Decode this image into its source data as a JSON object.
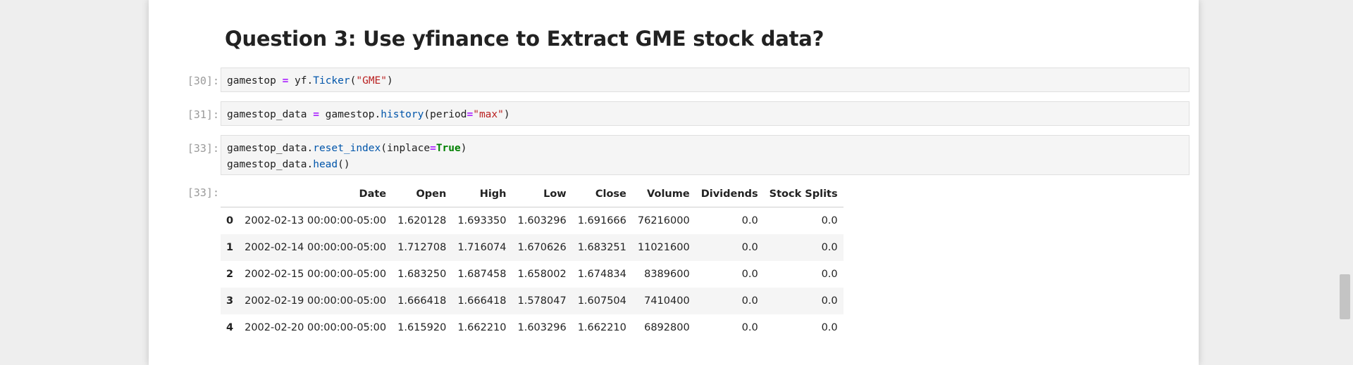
{
  "heading": "Question 3: Use yfinance to Extract GME stock data?",
  "cells": [
    {
      "prompt": "[30]:",
      "lines": [
        [
          {
            "t": "gamestop ",
            "c": ""
          },
          {
            "t": "=",
            "c": "op"
          },
          {
            "t": " yf.",
            "c": ""
          },
          {
            "t": "Ticker",
            "c": "fn"
          },
          {
            "t": "(",
            "c": ""
          },
          {
            "t": "\"GME\"",
            "c": "str"
          },
          {
            "t": ")",
            "c": ""
          }
        ]
      ]
    },
    {
      "prompt": "[31]:",
      "lines": [
        [
          {
            "t": "gamestop_data ",
            "c": ""
          },
          {
            "t": "=",
            "c": "op"
          },
          {
            "t": " gamestop.",
            "c": ""
          },
          {
            "t": "history",
            "c": "fn"
          },
          {
            "t": "(period",
            "c": ""
          },
          {
            "t": "=",
            "c": "op"
          },
          {
            "t": "\"max\"",
            "c": "str"
          },
          {
            "t": ")",
            "c": ""
          }
        ]
      ]
    },
    {
      "prompt": "[33]:",
      "lines": [
        [
          {
            "t": "gamestop_data.",
            "c": ""
          },
          {
            "t": "reset_index",
            "c": "fn"
          },
          {
            "t": "(inplace",
            "c": ""
          },
          {
            "t": "=",
            "c": "op"
          },
          {
            "t": "True",
            "c": "kw"
          },
          {
            "t": ")",
            "c": ""
          }
        ],
        [
          {
            "t": "gamestop_data.",
            "c": ""
          },
          {
            "t": "head",
            "c": "fn"
          },
          {
            "t": "()",
            "c": ""
          }
        ]
      ]
    }
  ],
  "output": {
    "prompt": "[33]:",
    "columns": [
      "",
      "Date",
      "Open",
      "High",
      "Low",
      "Close",
      "Volume",
      "Dividends",
      "Stock Splits"
    ],
    "rows": [
      [
        "0",
        "2002-02-13 00:00:00-05:00",
        "1.620128",
        "1.693350",
        "1.603296",
        "1.691666",
        "76216000",
        "0.0",
        "0.0"
      ],
      [
        "1",
        "2002-02-14 00:00:00-05:00",
        "1.712708",
        "1.716074",
        "1.670626",
        "1.683251",
        "11021600",
        "0.0",
        "0.0"
      ],
      [
        "2",
        "2002-02-15 00:00:00-05:00",
        "1.683250",
        "1.687458",
        "1.658002",
        "1.674834",
        "8389600",
        "0.0",
        "0.0"
      ],
      [
        "3",
        "2002-02-19 00:00:00-05:00",
        "1.666418",
        "1.666418",
        "1.578047",
        "1.607504",
        "7410400",
        "0.0",
        "0.0"
      ],
      [
        "4",
        "2002-02-20 00:00:00-05:00",
        "1.615920",
        "1.662210",
        "1.603296",
        "1.662210",
        "6892800",
        "0.0",
        "0.0"
      ]
    ]
  }
}
